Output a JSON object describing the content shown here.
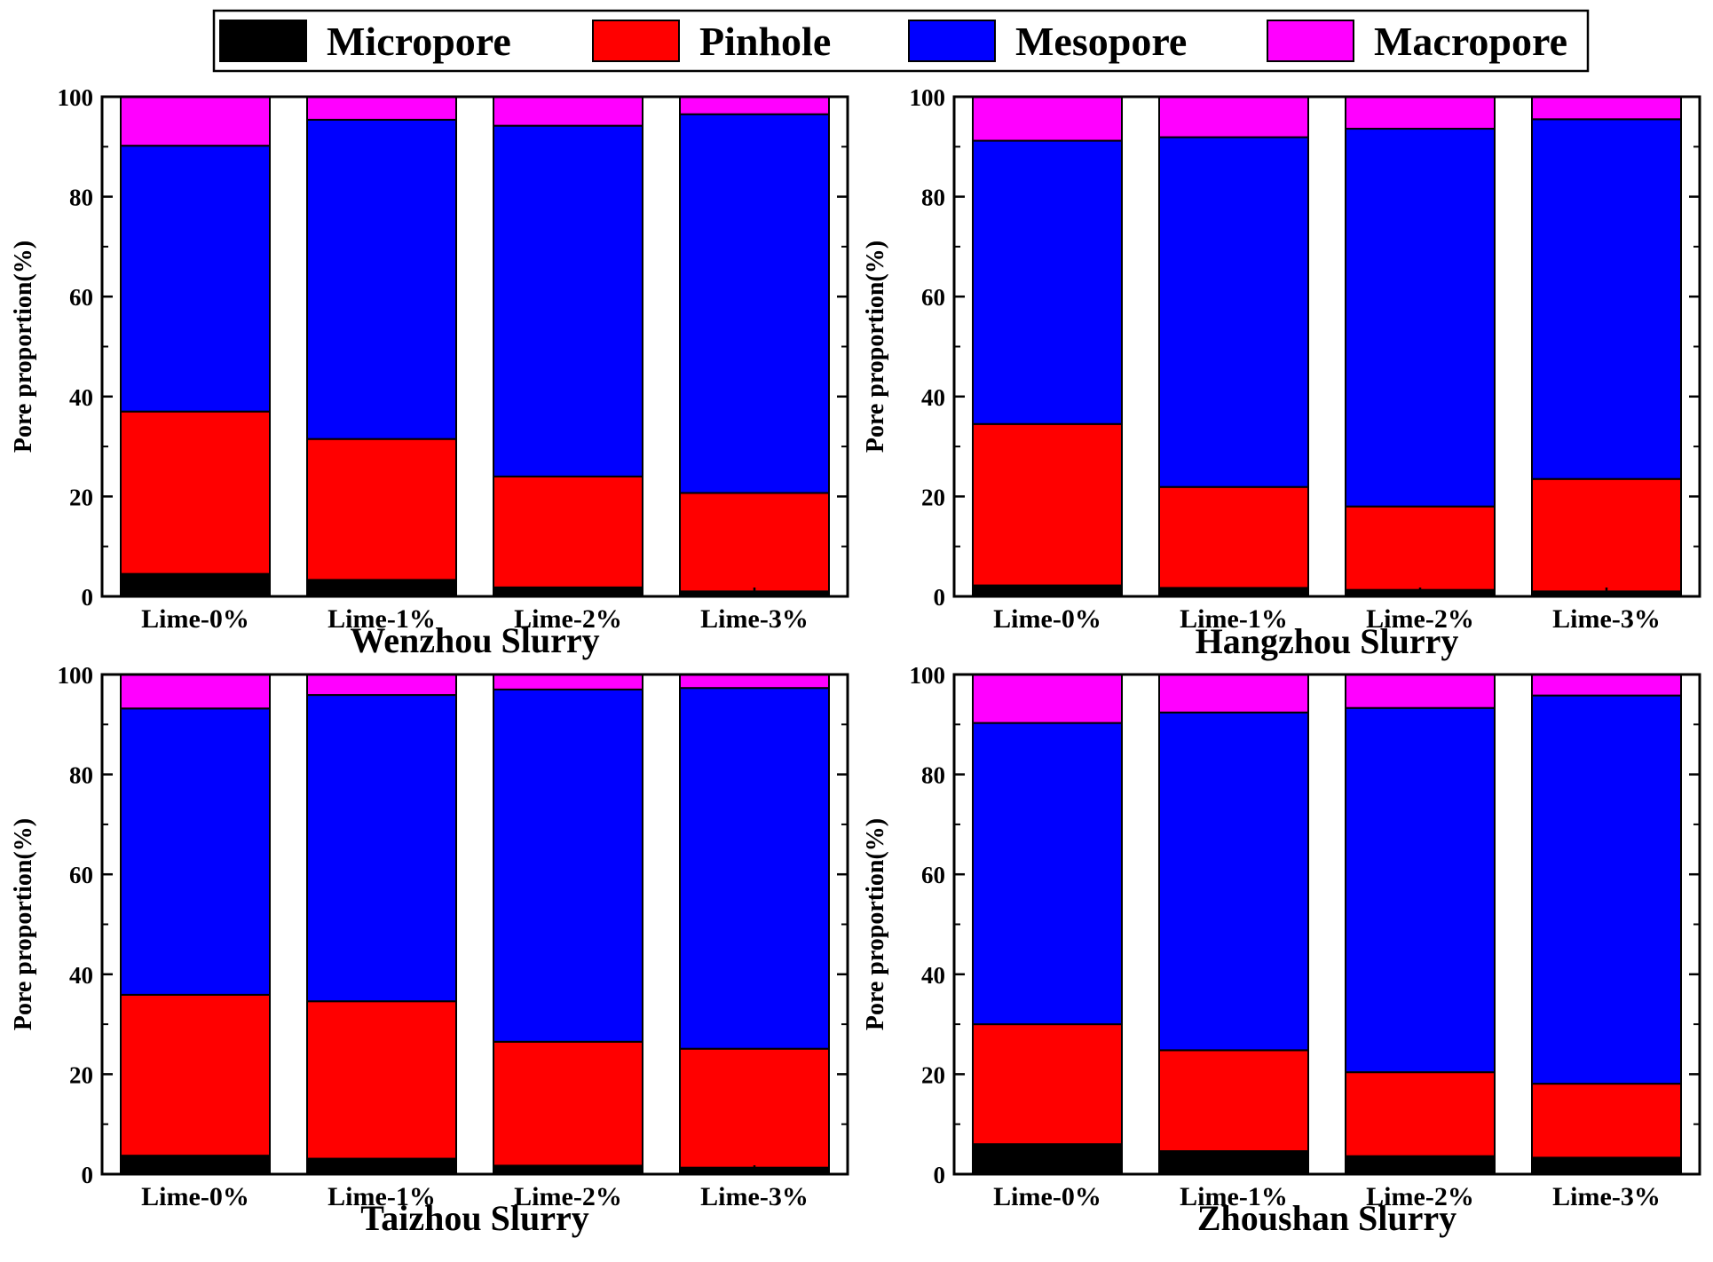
{
  "legend": {
    "items": [
      {
        "label": "Micropore",
        "color": "#000000"
      },
      {
        "label": "Pinhole",
        "color": "#ff0000"
      },
      {
        "label": "Mesopore",
        "color": "#0000ff"
      },
      {
        "label": "Macropore",
        "color": "#ff00ff"
      }
    ]
  },
  "chart_data": [
    {
      "type": "bar",
      "stacked": true,
      "title": "Wenzhou Slurry",
      "xlabel": "",
      "ylabel": "Pore proportion(%)",
      "ylim": [
        0,
        100
      ],
      "yticks": [
        "0",
        "20",
        "40",
        "60",
        "80",
        "100"
      ],
      "categories": [
        "Lime-0%",
        "Lime-1%",
        "Lime-2%",
        "Lime-3%"
      ],
      "series": [
        {
          "name": "Micropore",
          "color": "#000000",
          "values": [
            4.5,
            3.3,
            1.8,
            1.0
          ]
        },
        {
          "name": "Pinhole",
          "color": "#ff0000",
          "values": [
            32.5,
            28.2,
            22.2,
            19.7
          ]
        },
        {
          "name": "Mesopore",
          "color": "#0000ff",
          "values": [
            53.2,
            63.9,
            70.2,
            75.8
          ]
        },
        {
          "name": "Macropore",
          "color": "#ff00ff",
          "values": [
            9.8,
            4.6,
            5.8,
            3.5
          ]
        }
      ]
    },
    {
      "type": "bar",
      "stacked": true,
      "title": "Hangzhou Slurry",
      "xlabel": "",
      "ylabel": "Pore proportion(%)",
      "ylim": [
        0,
        100
      ],
      "yticks": [
        "0",
        "20",
        "40",
        "60",
        "80",
        "100"
      ],
      "categories": [
        "Lime-0%",
        "Lime-1%",
        "Lime-2%",
        "Lime-3%"
      ],
      "series": [
        {
          "name": "Micropore",
          "color": "#000000",
          "values": [
            2.2,
            1.7,
            1.3,
            1.0
          ]
        },
        {
          "name": "Pinhole",
          "color": "#ff0000",
          "values": [
            32.3,
            20.2,
            16.7,
            22.5
          ]
        },
        {
          "name": "Mesopore",
          "color": "#0000ff",
          "values": [
            56.7,
            70.0,
            75.6,
            72.0
          ]
        },
        {
          "name": "Macropore",
          "color": "#ff00ff",
          "values": [
            8.8,
            8.1,
            6.4,
            4.5
          ]
        }
      ]
    },
    {
      "type": "bar",
      "stacked": true,
      "title": "Taizhou Slurry",
      "xlabel": "",
      "ylabel": "Pore proportion(%)",
      "ylim": [
        0,
        100
      ],
      "yticks": [
        "0",
        "20",
        "40",
        "60",
        "80",
        "100"
      ],
      "categories": [
        "Lime-0%",
        "Lime-1%",
        "Lime-2%",
        "Lime-3%"
      ],
      "series": [
        {
          "name": "Micropore",
          "color": "#000000",
          "values": [
            3.7,
            3.1,
            1.7,
            1.3
          ]
        },
        {
          "name": "Pinhole",
          "color": "#ff0000",
          "values": [
            32.2,
            31.5,
            24.8,
            23.8
          ]
        },
        {
          "name": "Mesopore",
          "color": "#0000ff",
          "values": [
            57.3,
            61.3,
            70.5,
            72.2
          ]
        },
        {
          "name": "Macropore",
          "color": "#ff00ff",
          "values": [
            6.8,
            4.1,
            3.0,
            2.7
          ]
        }
      ]
    },
    {
      "type": "bar",
      "stacked": true,
      "title": "Zhoushan Slurry",
      "xlabel": "",
      "ylabel": "Pore proportion(%)",
      "ylim": [
        0,
        100
      ],
      "yticks": [
        "0",
        "20",
        "40",
        "60",
        "80",
        "100"
      ],
      "categories": [
        "Lime-0%",
        "Lime-1%",
        "Lime-2%",
        "Lime-3%"
      ],
      "series": [
        {
          "name": "Micropore",
          "color": "#000000",
          "values": [
            6.0,
            4.6,
            3.6,
            3.3
          ]
        },
        {
          "name": "Pinhole",
          "color": "#ff0000",
          "values": [
            24.0,
            20.2,
            16.8,
            14.8
          ]
        },
        {
          "name": "Mesopore",
          "color": "#0000ff",
          "values": [
            60.3,
            67.6,
            72.9,
            77.7
          ]
        },
        {
          "name": "Macropore",
          "color": "#ff00ff",
          "values": [
            9.7,
            7.6,
            6.7,
            4.2
          ]
        }
      ]
    }
  ]
}
